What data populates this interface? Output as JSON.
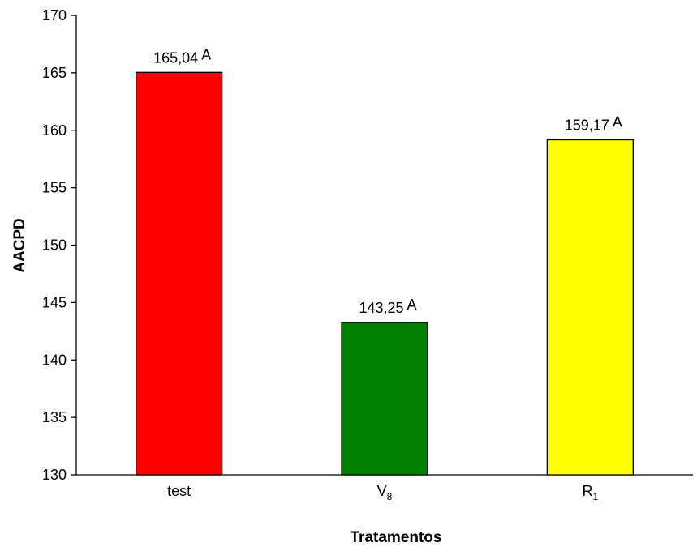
{
  "chart_data": {
    "type": "bar",
    "xlabel": "Tratamentos",
    "ylabel": "AACPD",
    "ylim": [
      130,
      170
    ],
    "yticks": [
      130,
      135,
      140,
      145,
      150,
      155,
      160,
      165,
      170
    ],
    "grid": false,
    "bars": [
      {
        "label": "test",
        "label_sub": "",
        "value": 165.04,
        "value_label": "165,04",
        "letter": "A",
        "color": "#ff0000"
      },
      {
        "label": "V",
        "label_sub": "8",
        "value": 143.25,
        "value_label": "143,25",
        "letter": "A",
        "color": "#008000"
      },
      {
        "label": "R",
        "label_sub": "1",
        "value": 159.17,
        "value_label": "159,17",
        "letter": "A",
        "color": "#ffff00"
      }
    ]
  }
}
